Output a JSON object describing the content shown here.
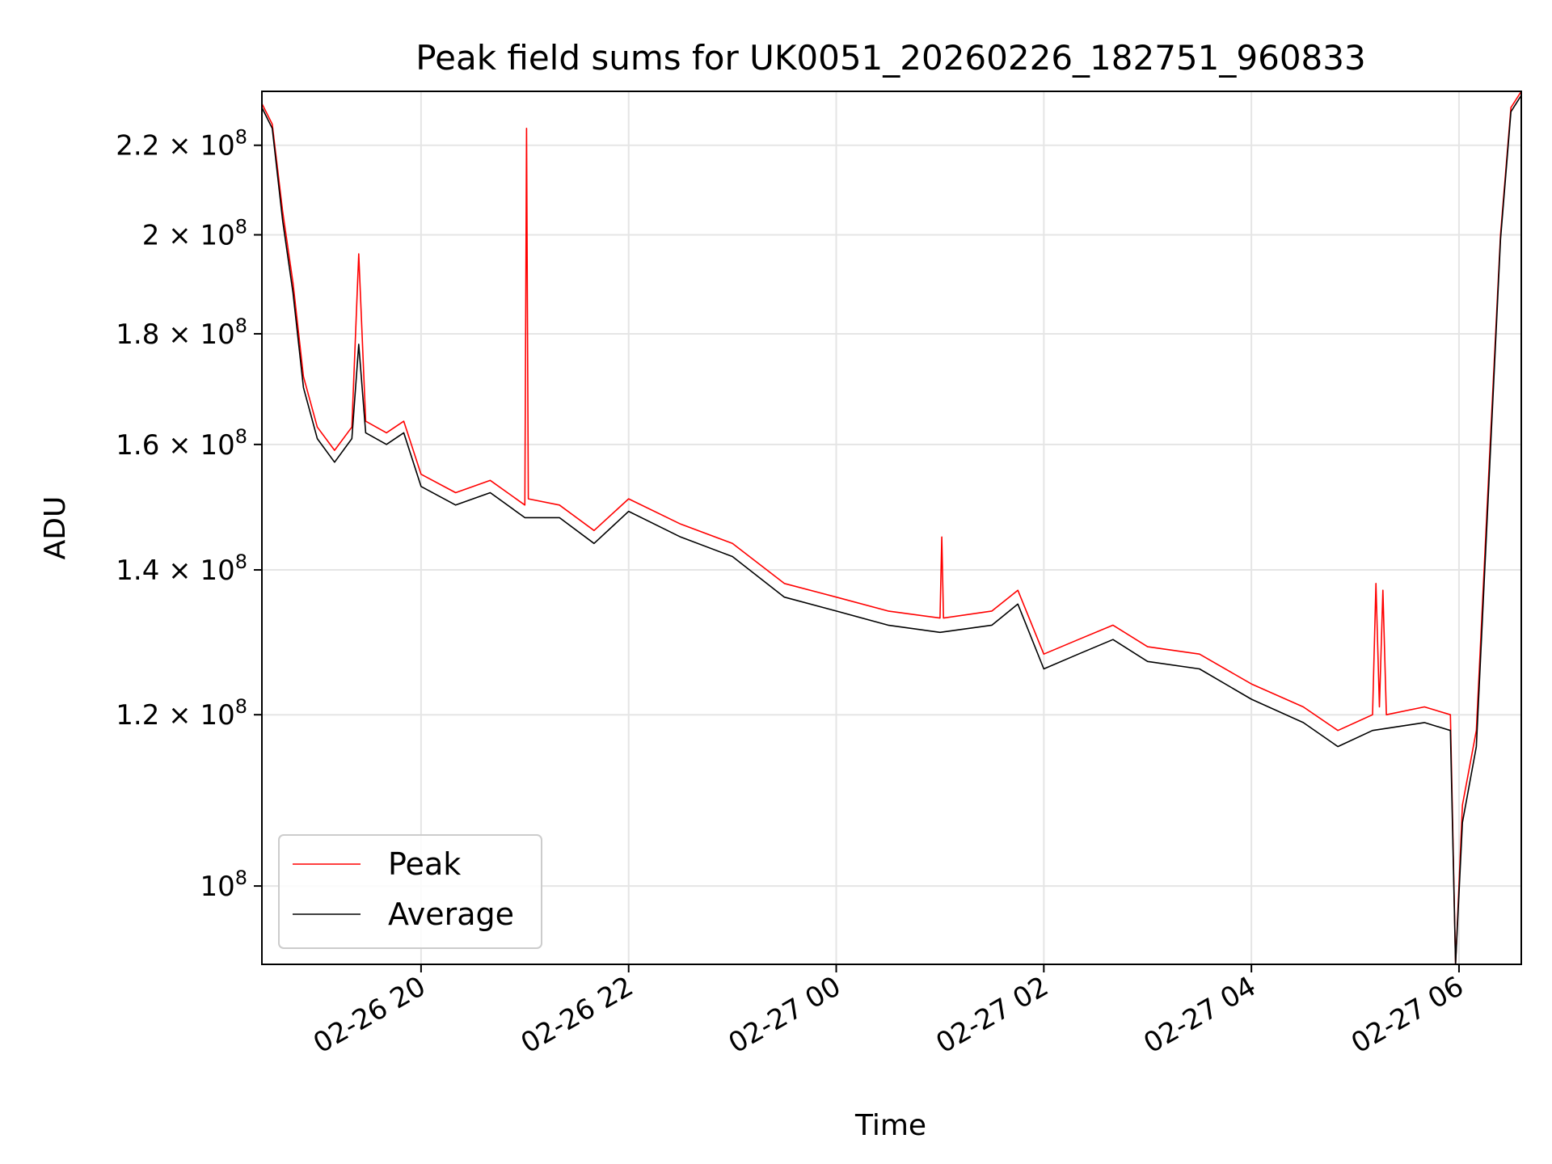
{
  "chart_data": {
    "type": "line",
    "title": "Peak field sums for UK0051_20260226_182751_960833",
    "xlabel": "Time",
    "ylabel": "ADU",
    "yscale": "log",
    "grid": true,
    "legend_placement": "lower-left",
    "xlim": [
      "2026-02-26 18:28",
      "2026-02-27 06:36"
    ],
    "ylim": [
      92000000,
      233000000
    ],
    "x_ticks": [
      {
        "value": "2026-02-26 20:00",
        "label": "02-26 20"
      },
      {
        "value": "2026-02-26 22:00",
        "label": "02-26 22"
      },
      {
        "value": "2026-02-27 00:00",
        "label": "02-27 00"
      },
      {
        "value": "2026-02-27 02:00",
        "label": "02-27 02"
      },
      {
        "value": "2026-02-27 04:00",
        "label": "02-27 04"
      },
      {
        "value": "2026-02-27 06:00",
        "label": "02-27 06"
      }
    ],
    "y_ticks": [
      {
        "value": 100000000,
        "mantissa": "",
        "exponent": "8",
        "label": "10^8"
      },
      {
        "value": 120000000,
        "mantissa": "1.2 × 10",
        "exponent": "8",
        "label": "1.2 × 10^8"
      },
      {
        "value": 140000000,
        "mantissa": "1.4 × 10",
        "exponent": "8",
        "label": "1.4 × 10^8"
      },
      {
        "value": 160000000,
        "mantissa": "1.6 × 10",
        "exponent": "8",
        "label": "1.6 × 10^8"
      },
      {
        "value": 180000000,
        "mantissa": "1.8 × 10",
        "exponent": "8",
        "label": "1.8 × 10^8"
      },
      {
        "value": 200000000,
        "mantissa": "2 × 10",
        "exponent": "8",
        "label": "2 × 10^8"
      },
      {
        "value": 220000000,
        "mantissa": "2.2 × 10",
        "exponent": "8",
        "label": "2.2 × 10^8"
      }
    ],
    "series": [
      {
        "name": "Peak",
        "color": "#ff0000",
        "points": [
          [
            "2026-02-26 18:28",
            230000000
          ],
          [
            "2026-02-26 18:34",
            225000000
          ],
          [
            "2026-02-26 18:40",
            205000000
          ],
          [
            "2026-02-26 18:46",
            190000000
          ],
          [
            "2026-02-26 18:52",
            172000000
          ],
          [
            "2026-02-26 19:00",
            163000000
          ],
          [
            "2026-02-26 19:10",
            159000000
          ],
          [
            "2026-02-26 19:20",
            163000000
          ],
          [
            "2026-02-26 19:24",
            196000000
          ],
          [
            "2026-02-26 19:28",
            164000000
          ],
          [
            "2026-02-26 19:40",
            162000000
          ],
          [
            "2026-02-26 19:50",
            164000000
          ],
          [
            "2026-02-26 20:00",
            155000000
          ],
          [
            "2026-02-26 20:20",
            152000000
          ],
          [
            "2026-02-26 20:40",
            154000000
          ],
          [
            "2026-02-26 21:00",
            150000000
          ],
          [
            "2026-02-26 21:01",
            224000000
          ],
          [
            "2026-02-26 21:02",
            151000000
          ],
          [
            "2026-02-26 21:20",
            150000000
          ],
          [
            "2026-02-26 21:40",
            146000000
          ],
          [
            "2026-02-26 22:00",
            151000000
          ],
          [
            "2026-02-26 22:30",
            147000000
          ],
          [
            "2026-02-26 23:00",
            144000000
          ],
          [
            "2026-02-26 23:30",
            138000000
          ],
          [
            "2026-02-27 00:00",
            136000000
          ],
          [
            "2026-02-27 00:30",
            134000000
          ],
          [
            "2026-02-27 01:00",
            133000000
          ],
          [
            "2026-02-27 01:01",
            145000000
          ],
          [
            "2026-02-27 01:02",
            133000000
          ],
          [
            "2026-02-27 01:30",
            134000000
          ],
          [
            "2026-02-27 01:45",
            137000000
          ],
          [
            "2026-02-27 02:00",
            128000000
          ],
          [
            "2026-02-27 02:20",
            130000000
          ],
          [
            "2026-02-27 02:40",
            132000000
          ],
          [
            "2026-02-27 03:00",
            129000000
          ],
          [
            "2026-02-27 03:30",
            128000000
          ],
          [
            "2026-02-27 04:00",
            124000000
          ],
          [
            "2026-02-27 04:30",
            121000000
          ],
          [
            "2026-02-27 04:50",
            118000000
          ],
          [
            "2026-02-27 05:10",
            120000000
          ],
          [
            "2026-02-27 05:12",
            138000000
          ],
          [
            "2026-02-27 05:14",
            121000000
          ],
          [
            "2026-02-27 05:16",
            137000000
          ],
          [
            "2026-02-27 05:18",
            120000000
          ],
          [
            "2026-02-27 05:40",
            121000000
          ],
          [
            "2026-02-27 05:55",
            120000000
          ],
          [
            "2026-02-27 05:58",
            92000000
          ],
          [
            "2026-02-27 06:02",
            109000000
          ],
          [
            "2026-02-27 06:10",
            118000000
          ],
          [
            "2026-02-27 06:18",
            160000000
          ],
          [
            "2026-02-27 06:24",
            200000000
          ],
          [
            "2026-02-27 06:30",
            229000000
          ],
          [
            "2026-02-27 06:36",
            233000000
          ]
        ]
      },
      {
        "name": "Average",
        "color": "#000000",
        "points": [
          [
            "2026-02-26 18:28",
            229000000
          ],
          [
            "2026-02-26 18:34",
            224000000
          ],
          [
            "2026-02-26 18:40",
            203000000
          ],
          [
            "2026-02-26 18:46",
            188000000
          ],
          [
            "2026-02-26 18:52",
            170000000
          ],
          [
            "2026-02-26 19:00",
            161000000
          ],
          [
            "2026-02-26 19:10",
            157000000
          ],
          [
            "2026-02-26 19:20",
            161000000
          ],
          [
            "2026-02-26 19:24",
            178000000
          ],
          [
            "2026-02-26 19:28",
            162000000
          ],
          [
            "2026-02-26 19:40",
            160000000
          ],
          [
            "2026-02-26 19:50",
            162000000
          ],
          [
            "2026-02-26 20:00",
            153000000
          ],
          [
            "2026-02-26 20:20",
            150000000
          ],
          [
            "2026-02-26 20:40",
            152000000
          ],
          [
            "2026-02-26 21:00",
            148000000
          ],
          [
            "2026-02-26 21:20",
            148000000
          ],
          [
            "2026-02-26 21:40",
            144000000
          ],
          [
            "2026-02-26 22:00",
            149000000
          ],
          [
            "2026-02-26 22:30",
            145000000
          ],
          [
            "2026-02-26 23:00",
            142000000
          ],
          [
            "2026-02-26 23:30",
            136000000
          ],
          [
            "2026-02-27 00:00",
            134000000
          ],
          [
            "2026-02-27 00:30",
            132000000
          ],
          [
            "2026-02-27 01:00",
            131000000
          ],
          [
            "2026-02-27 01:30",
            132000000
          ],
          [
            "2026-02-27 01:45",
            135000000
          ],
          [
            "2026-02-27 02:00",
            126000000
          ],
          [
            "2026-02-27 02:20",
            128000000
          ],
          [
            "2026-02-27 02:40",
            130000000
          ],
          [
            "2026-02-27 03:00",
            127000000
          ],
          [
            "2026-02-27 03:30",
            126000000
          ],
          [
            "2026-02-27 04:00",
            122000000
          ],
          [
            "2026-02-27 04:30",
            119000000
          ],
          [
            "2026-02-27 04:50",
            116000000
          ],
          [
            "2026-02-27 05:10",
            118000000
          ],
          [
            "2026-02-27 05:40",
            119000000
          ],
          [
            "2026-02-27 05:55",
            118000000
          ],
          [
            "2026-02-27 05:58",
            92000000
          ],
          [
            "2026-02-27 06:02",
            107000000
          ],
          [
            "2026-02-27 06:10",
            116000000
          ],
          [
            "2026-02-27 06:18",
            158000000
          ],
          [
            "2026-02-27 06:24",
            199000000
          ],
          [
            "2026-02-27 06:30",
            228000000
          ],
          [
            "2026-02-27 06:36",
            232000000
          ]
        ]
      }
    ]
  }
}
